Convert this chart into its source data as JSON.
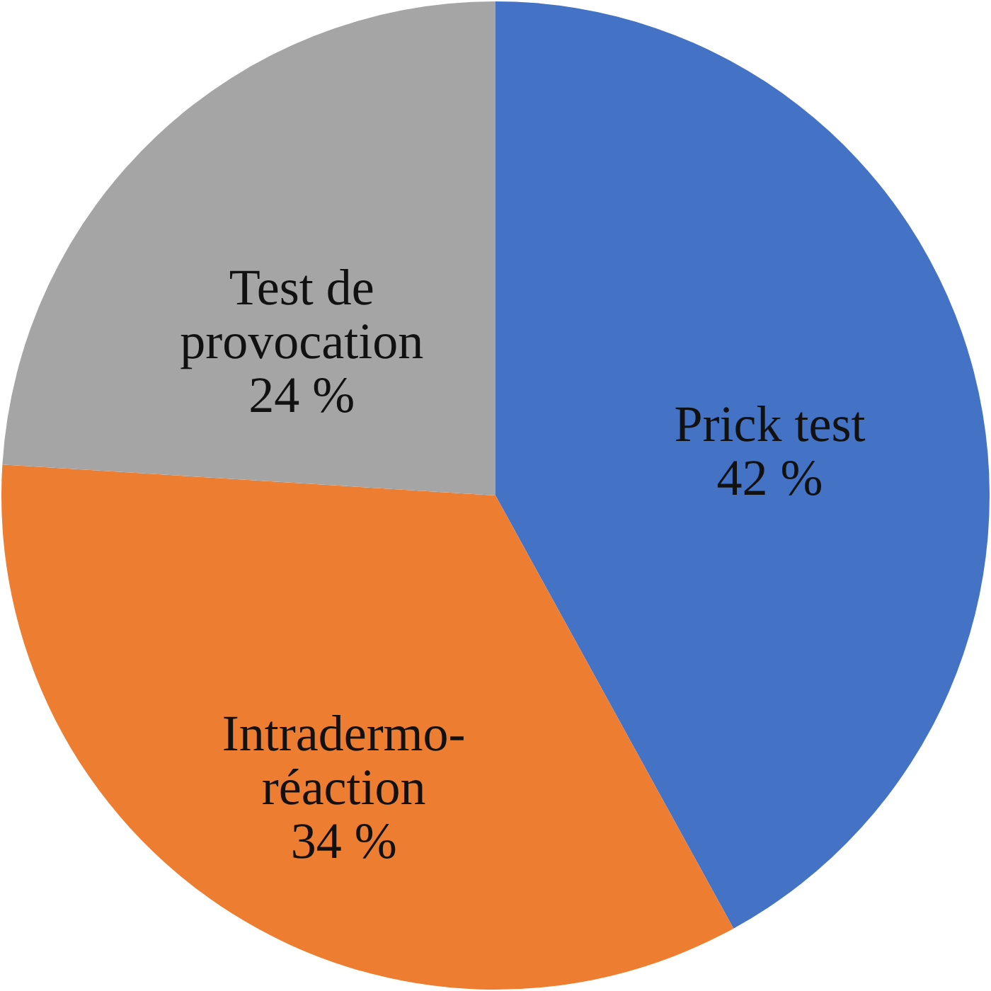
{
  "chart_data": {
    "type": "pie",
    "categories": [
      "Prick test",
      "Intradermo-réaction",
      "Test de provocation"
    ],
    "values": [
      42,
      34,
      24
    ],
    "colors": [
      "#4472c4",
      "#ed7d31",
      "#a5a5a5"
    ],
    "value_labels": [
      "42 %",
      "34 %",
      "24 %"
    ],
    "legend": false
  }
}
